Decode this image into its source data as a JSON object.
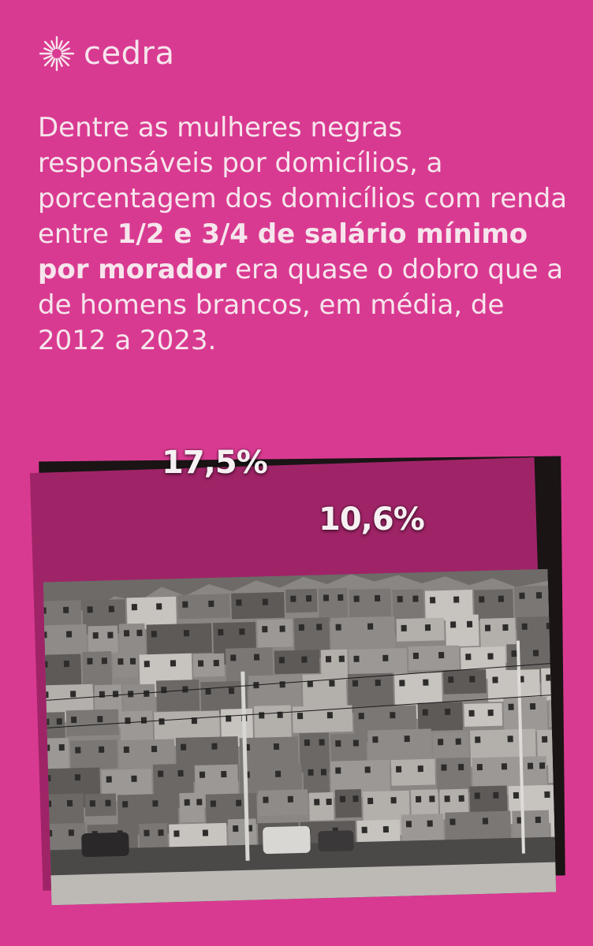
{
  "brand": {
    "name": "cedra",
    "color": "#f6e5ec",
    "icon": "sun-burst-icon"
  },
  "headline": {
    "part1": "Dentre as mulheres negras responsáveis por domicílios, a porcentagem dos domicílios com renda entre ",
    "bold": "1/2 e 3/4 de salário mínimo por morador",
    "part2": " era quase o dobro que a de homens brancos, em média, de 2012 a 2023."
  },
  "colors": {
    "background": "#d93a91",
    "frame": "#9f2467",
    "bar_women": "#d93a91",
    "bar_men": "#efece3"
  },
  "chart_data": {
    "type": "bar",
    "categories": [
      "",
      ""
    ],
    "values": [
      17.5,
      10.6
    ],
    "value_labels": [
      "17,5%",
      "10,6%"
    ],
    "unit": "%"
  }
}
